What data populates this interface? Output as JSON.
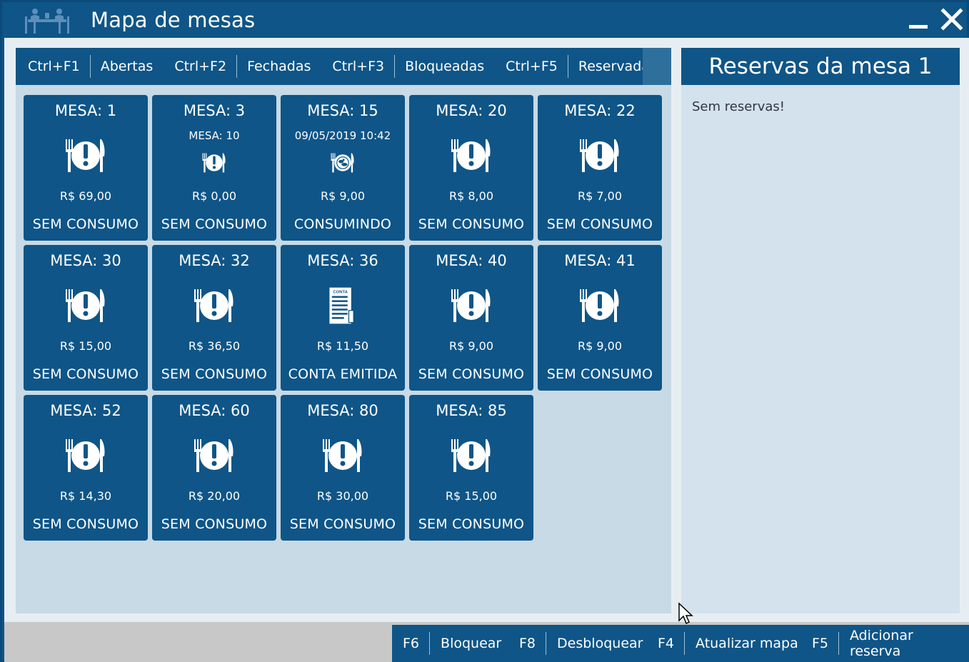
{
  "window": {
    "title": "Mapa de mesas",
    "icon": "restaurant-tables-icon",
    "controls": [
      "minimize-icon",
      "close-icon"
    ]
  },
  "tabs": [
    {
      "key": "Ctrl+F1",
      "label": "Abertas"
    },
    {
      "key": "Ctrl+F2",
      "label": "Fechadas"
    },
    {
      "key": "Ctrl+F3",
      "label": "Bloqueadas"
    },
    {
      "key": "Ctrl+F5",
      "label": "Reservadas"
    }
  ],
  "tables": [
    {
      "mesa": "MESA:  1",
      "price": "R$ 69,00",
      "status": "SEM CONSUMO",
      "icon": "plate-alert-icon"
    },
    {
      "mesa": "MESA:  3",
      "sub": "MESA: 10",
      "price": "R$ 0,00",
      "status": "SEM CONSUMO",
      "icon": "plate-alert-icon"
    },
    {
      "mesa": "MESA:  15",
      "sub": "09/05/2019 10:42",
      "price": "R$ 9,00",
      "status": "CONSUMINDO",
      "icon": "plate-food-icon"
    },
    {
      "mesa": "MESA:  20",
      "price": "R$ 8,00",
      "status": "SEM CONSUMO",
      "icon": "plate-alert-icon"
    },
    {
      "mesa": "MESA:  22",
      "price": "R$ 7,00",
      "status": "SEM CONSUMO",
      "icon": "plate-alert-icon"
    },
    {
      "mesa": "MESA:  30",
      "price": "R$ 15,00",
      "status": "SEM CONSUMO",
      "icon": "plate-alert-icon"
    },
    {
      "mesa": "MESA:  32",
      "price": "R$ 36,50",
      "status": "SEM CONSUMO",
      "icon": "plate-alert-icon"
    },
    {
      "mesa": "MESA:  36",
      "price": "R$ 11,50",
      "status": "CONTA EMITIDA",
      "icon": "bill-icon",
      "icon_text": "CONTA"
    },
    {
      "mesa": "MESA:  40",
      "price": "R$ 9,00",
      "status": "SEM CONSUMO",
      "icon": "plate-alert-icon"
    },
    {
      "mesa": "MESA:  41",
      "price": "R$ 9,00",
      "status": "SEM CONSUMO",
      "icon": "plate-alert-icon"
    },
    {
      "mesa": "MESA:  52",
      "price": "R$ 14,30",
      "status": "SEM CONSUMO",
      "icon": "plate-alert-icon"
    },
    {
      "mesa": "MESA:  60",
      "price": "R$ 20,00",
      "status": "SEM CONSUMO",
      "icon": "plate-alert-icon"
    },
    {
      "mesa": "MESA:  80",
      "price": "R$ 30,00",
      "status": "SEM CONSUMO",
      "icon": "plate-alert-icon"
    },
    {
      "mesa": "MESA:  85",
      "price": "R$ 15,00",
      "status": "SEM CONSUMO",
      "icon": "plate-alert-icon"
    }
  ],
  "reservations": {
    "title": "Reservas da mesa  1",
    "empty_text": "Sem reservas!"
  },
  "footer": [
    {
      "key": "F6",
      "label": "Bloquear"
    },
    {
      "key": "F8",
      "label": "Desbloquear"
    },
    {
      "key": "F4",
      "label": "Atualizar mapa"
    },
    {
      "key": "F5",
      "label": "Adicionar reserva"
    }
  ],
  "colors": {
    "primary": "#0f5587",
    "panel": "#c7dae6",
    "reservations_panel": "#d3e2ec",
    "footer": "#c8c8c8"
  }
}
